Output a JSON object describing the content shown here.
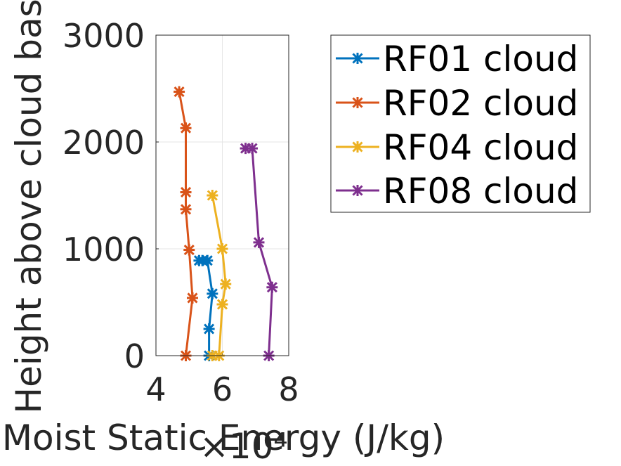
{
  "chart_data": {
    "type": "line",
    "xlabel": "Moist Static Energy (J/kg)",
    "ylabel": "Height above cloud base",
    "x_exponent_label": "×10⁴",
    "xlim": [
      4,
      8
    ],
    "ylim": [
      0,
      3000
    ],
    "x_scale": 10000,
    "xticks": [
      "4",
      "6",
      "8"
    ],
    "yticks": [
      "0",
      "1000",
      "2000",
      "3000"
    ],
    "grid": true,
    "legend_position": "outside-right",
    "series": [
      {
        "name": "RF01 cloud",
        "color": "#0072BD",
        "x": [
          5.6,
          5.6,
          5.7,
          5.55,
          5.3,
          5.4
        ],
        "y": [
          0,
          250,
          580,
          890,
          890,
          890
        ]
      },
      {
        "name": "RF02 cloud",
        "color": "#D95319",
        "x": [
          4.9,
          5.1,
          5.0,
          4.9,
          4.9,
          4.9,
          4.7
        ],
        "y": [
          0,
          540,
          990,
          1370,
          1530,
          2130,
          2470
        ]
      },
      {
        "name": "RF04 cloud",
        "color": "#EDB120",
        "x": [
          5.7,
          5.9,
          6.0,
          6.1,
          6.0,
          5.7
        ],
        "y": [
          0,
          0,
          480,
          670,
          1000,
          1500
        ]
      },
      {
        "name": "RF08 cloud",
        "color": "#7E2F8E",
        "x": [
          7.4,
          7.5,
          7.1,
          6.9,
          6.7
        ],
        "y": [
          0,
          640,
          1060,
          1940,
          1940
        ]
      }
    ]
  }
}
